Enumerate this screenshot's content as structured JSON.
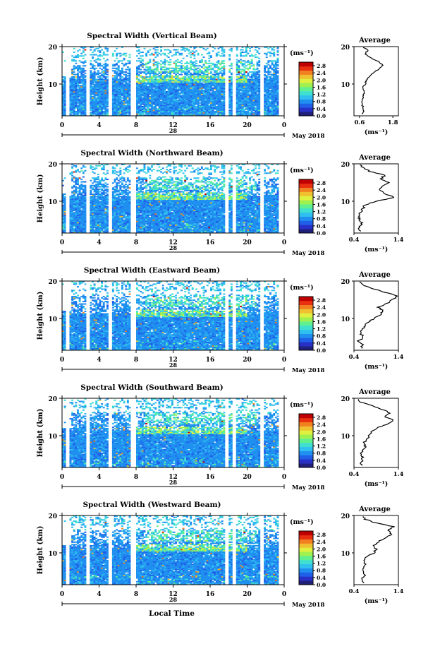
{
  "colors": {
    "colormap": [
      "#20207a",
      "#2830c8",
      "#2060e8",
      "#2090f0",
      "#30c0f0",
      "#40e0d0",
      "#60f090",
      "#a0f050",
      "#e0f040",
      "#f0c030",
      "#f08020",
      "#e83010",
      "#c00000"
    ],
    "background": "#ffffff",
    "line": "#000000"
  },
  "shared": {
    "x_ticks": [
      "0",
      "4",
      "8",
      "12",
      "16",
      "20",
      "0"
    ],
    "date_number": "28",
    "month_label": "May 2018",
    "y_ticks": [
      "10",
      "20"
    ],
    "ylabel": "Height (km)",
    "colorbar_unit": "(ms⁻¹)",
    "colorbar_ticks": [
      "2.8",
      "2.4",
      "2.0",
      "1.6",
      "1.2",
      "0.8",
      "0.4",
      "0.0"
    ],
    "average_title": "Average",
    "average_unit": "(ms⁻¹)",
    "xlabel_bottom": "Local Time"
  },
  "chart_data": [
    {
      "type": "heatmap",
      "title": "Spectral Width (Vertical Beam)",
      "x_range_hours": [
        0,
        24
      ],
      "y_range_km": [
        1.5,
        20
      ],
      "color_range": [
        0.0,
        3.0
      ],
      "gaps_hours": [
        [
          0.5,
          0.8
        ],
        [
          2.7,
          3.0
        ],
        [
          5.0,
          5.4
        ],
        [
          7.5,
          8.0
        ],
        [
          17.7,
          18.0
        ],
        [
          18.4,
          18.7
        ],
        [
          21.3,
          21.8
        ],
        [
          23.5,
          24.0
        ]
      ],
      "average_profile": {
        "x_ticks": [
          "0.6",
          "1.8"
        ],
        "x_range": [
          0.4,
          2.0
        ],
        "height_km": [
          2,
          3,
          4,
          5,
          6,
          7,
          8,
          9,
          10,
          11,
          12,
          13,
          14,
          15,
          16,
          17,
          18,
          19,
          20
        ],
        "value": [
          0.7,
          0.75,
          0.72,
          0.68,
          0.7,
          0.74,
          0.78,
          0.72,
          0.8,
          0.85,
          0.95,
          1.1,
          1.3,
          1.45,
          1.3,
          1.0,
          0.8,
          0.9,
          0.7
        ]
      }
    },
    {
      "type": "heatmap",
      "title": "Spectral Width (Northward Beam)",
      "x_range_hours": [
        0,
        24
      ],
      "y_range_km": [
        1.5,
        20
      ],
      "color_range": [
        0.0,
        3.0
      ],
      "gaps_hours": [
        [
          0.5,
          0.8
        ],
        [
          2.7,
          3.0
        ],
        [
          5.0,
          5.4
        ],
        [
          7.5,
          8.0
        ],
        [
          17.7,
          18.0
        ],
        [
          18.4,
          18.7
        ],
        [
          21.3,
          21.8
        ],
        [
          23.5,
          24.0
        ]
      ],
      "average_profile": {
        "x_ticks": [
          "0.4",
          "1.4"
        ],
        "x_range": [
          0.4,
          1.4
        ],
        "height_km": [
          2,
          3,
          4,
          5,
          6,
          7,
          8,
          9,
          10,
          11,
          12,
          13,
          14,
          15,
          16,
          17,
          18,
          19,
          20
        ],
        "value": [
          0.55,
          0.5,
          0.58,
          0.52,
          0.5,
          0.55,
          0.6,
          0.65,
          0.9,
          1.3,
          1.1,
          0.95,
          1.05,
          1.2,
          1.0,
          1.1,
          0.75,
          0.6,
          0.55
        ]
      }
    },
    {
      "type": "heatmap",
      "title": "Spectral Width (Eastward Beam)",
      "x_range_hours": [
        0,
        24
      ],
      "y_range_km": [
        1.5,
        20
      ],
      "color_range": [
        0.0,
        3.0
      ],
      "gaps_hours": [
        [
          0.5,
          0.8
        ],
        [
          2.7,
          3.0
        ],
        [
          5.0,
          5.4
        ],
        [
          7.5,
          8.0
        ],
        [
          17.7,
          18.0
        ],
        [
          18.4,
          18.7
        ],
        [
          21.3,
          21.8
        ],
        [
          23.5,
          24.0
        ]
      ],
      "average_profile": {
        "x_ticks": [
          "0.4",
          "1.4"
        ],
        "x_range": [
          0.4,
          1.4
        ],
        "height_km": [
          2,
          3,
          4,
          5,
          6,
          7,
          8,
          9,
          10,
          11,
          12,
          13,
          14,
          15,
          16,
          17,
          18,
          19,
          20
        ],
        "value": [
          0.55,
          0.6,
          0.5,
          0.62,
          0.55,
          0.6,
          0.65,
          0.7,
          0.85,
          1.0,
          1.05,
          0.95,
          1.15,
          1.25,
          1.4,
          1.1,
          0.8,
          0.6,
          0.5
        ]
      }
    },
    {
      "type": "heatmap",
      "title": "Spectral Width (Southward Beam)",
      "x_range_hours": [
        0,
        24
      ],
      "y_range_km": [
        1.5,
        20
      ],
      "color_range": [
        0.0,
        3.0
      ],
      "gaps_hours": [
        [
          0.5,
          0.8
        ],
        [
          2.7,
          3.0
        ],
        [
          5.0,
          5.4
        ],
        [
          7.5,
          8.0
        ],
        [
          17.7,
          18.0
        ],
        [
          18.4,
          18.7
        ],
        [
          21.3,
          21.8
        ],
        [
          23.5,
          24.0
        ]
      ],
      "average_profile": {
        "x_ticks": [
          "0.4",
          "1.4"
        ],
        "x_range": [
          0.4,
          1.4
        ],
        "height_km": [
          2,
          3,
          4,
          5,
          6,
          7,
          8,
          9,
          10,
          11,
          12,
          13,
          14,
          15,
          16,
          17,
          18,
          19,
          20
        ],
        "value": [
          0.55,
          0.58,
          0.6,
          0.55,
          0.6,
          0.65,
          0.62,
          0.7,
          0.75,
          0.8,
          0.9,
          1.15,
          1.3,
          1.1,
          1.2,
          1.05,
          0.8,
          0.55,
          0.45
        ]
      }
    },
    {
      "type": "heatmap",
      "title": "Spectral Width (Westward Beam)",
      "x_range_hours": [
        0,
        24
      ],
      "y_range_km": [
        1.5,
        20
      ],
      "color_range": [
        0.0,
        3.0
      ],
      "gaps_hours": [
        [
          0.5,
          0.8
        ],
        [
          2.7,
          3.0
        ],
        [
          5.0,
          5.4
        ],
        [
          7.5,
          8.0
        ],
        [
          17.7,
          18.0
        ],
        [
          18.4,
          18.7
        ],
        [
          21.3,
          21.8
        ],
        [
          23.5,
          24.0
        ]
      ],
      "average_profile": {
        "x_ticks": [
          "0.4",
          "1.4"
        ],
        "x_range": [
          0.4,
          1.4
        ],
        "height_km": [
          2,
          3,
          4,
          5,
          6,
          7,
          8,
          9,
          10,
          11,
          12,
          13,
          14,
          15,
          16,
          17,
          18,
          19,
          20
        ],
        "value": [
          0.6,
          0.55,
          0.65,
          0.6,
          0.62,
          0.65,
          0.6,
          0.7,
          0.85,
          0.9,
          0.85,
          0.95,
          1.1,
          1.25,
          1.15,
          1.3,
          0.9,
          0.65,
          0.55
        ]
      }
    }
  ]
}
